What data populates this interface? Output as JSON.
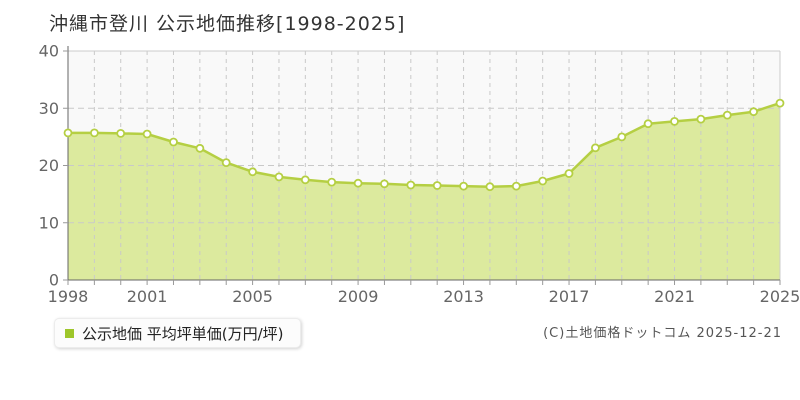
{
  "title": "沖縄市登川 公示地価推移[1998-2025]",
  "legend": {
    "label": "公示地価 平均坪単価(万円/坪)",
    "marker_color": "#9ec62b"
  },
  "footer": {
    "copyright": "(C)土地価格ドットコム 2025-12-21"
  },
  "chart_data": {
    "type": "area",
    "title": "沖縄市登川 公示地価推移[1998-2025]",
    "xlabel": "",
    "ylabel": "",
    "x": [
      1998,
      1999,
      2000,
      2001,
      2002,
      2003,
      2004,
      2005,
      2006,
      2007,
      2008,
      2009,
      2010,
      2011,
      2012,
      2013,
      2014,
      2015,
      2016,
      2017,
      2018,
      2019,
      2020,
      2021,
      2022,
      2023,
      2024,
      2025
    ],
    "series": [
      {
        "name": "公示地価 平均坪単価(万円/坪)",
        "values": [
          25.7,
          25.7,
          25.6,
          25.5,
          24.1,
          23.0,
          20.5,
          18.9,
          18.0,
          17.5,
          17.1,
          16.9,
          16.8,
          16.6,
          16.5,
          16.4,
          16.3,
          16.4,
          17.3,
          18.6,
          23.1,
          25.0,
          27.3,
          27.7,
          28.1,
          28.8,
          29.4,
          30.9
        ]
      }
    ],
    "ylim": [
      0,
      40
    ],
    "yticks": [
      0,
      10,
      20,
      30,
      40
    ],
    "xticks_labeled": [
      1998,
      2001,
      2005,
      2009,
      2013,
      2017,
      2021,
      2025
    ],
    "grid": true,
    "legend_position": "bottom-left",
    "colors": {
      "line": "#b5cf43",
      "fill": "#dcea9e",
      "marker_fill": "#ffffff",
      "grid": "#c9c9c9",
      "axis": "#666666",
      "tick": "#999999",
      "border": "#cccccc",
      "plot_bg": "#f9f9f9",
      "axis_text": "#666666"
    }
  }
}
